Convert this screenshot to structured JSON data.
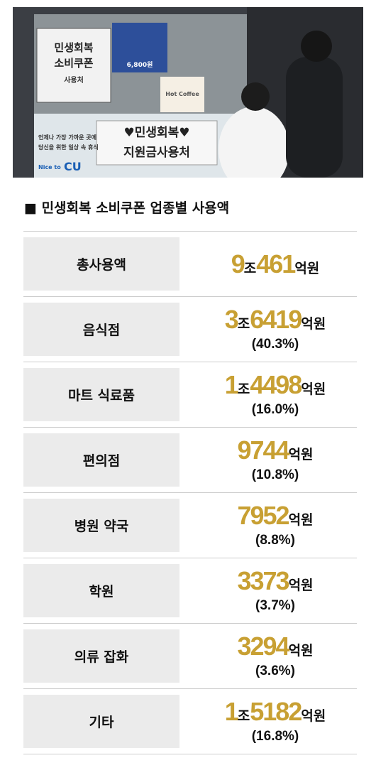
{
  "photo": {
    "sign_left": [
      "민생회복",
      "소비쿠폰",
      "사용처"
    ],
    "sign_center": [
      "♥민생회복♥",
      "지원금사용처"
    ],
    "window_text": [
      "언제나 가장 가까운 곳에",
      "당신을 위한 일상 속 휴식"
    ],
    "brand_small": "Nice to",
    "brand": "CU",
    "poster": "Hot Coffee",
    "price": "6,800원"
  },
  "table": {
    "title": "■ 민생회복 소비쿠폰 업종별 사용액",
    "rows": [
      {
        "label": "총사용액",
        "amount": [
          {
            "num": "9",
            "unit": "조"
          },
          {
            "num": "461",
            "unit": "억원"
          }
        ]
      },
      {
        "label": "음식점",
        "amount": [
          {
            "num": "3",
            "unit": "조"
          },
          {
            "num": "6419",
            "unit": "억원"
          }
        ],
        "share": "(40.3%)"
      },
      {
        "label": "마트 식료품",
        "amount": [
          {
            "num": "1",
            "unit": "조"
          },
          {
            "num": "4498",
            "unit": "억원"
          }
        ],
        "share": "(16.0%)"
      },
      {
        "label": "편의점",
        "amount": [
          {
            "num": "9744",
            "unit": "억원"
          }
        ],
        "share": "(10.8%)"
      },
      {
        "label": "병원 약국",
        "amount": [
          {
            "num": "7952",
            "unit": "억원"
          }
        ],
        "share": "(8.8%)"
      },
      {
        "label": "학원",
        "amount": [
          {
            "num": "3373",
            "unit": "억원"
          }
        ],
        "share": "(3.7%)"
      },
      {
        "label": "의류 잡화",
        "amount": [
          {
            "num": "3294",
            "unit": "억원"
          }
        ],
        "share": "(3.6%)"
      },
      {
        "label": "기타",
        "amount": [
          {
            "num": "1",
            "unit": "조"
          },
          {
            "num": "5182",
            "unit": "억원"
          }
        ],
        "share": "(16.8%)"
      }
    ]
  }
}
